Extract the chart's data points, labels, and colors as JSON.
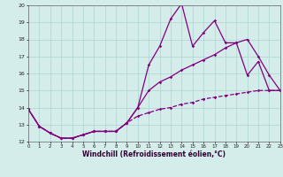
{
  "xlabel": "Windchill (Refroidissement éolien,°C)",
  "x": [
    0,
    1,
    2,
    3,
    4,
    5,
    6,
    7,
    8,
    9,
    10,
    11,
    12,
    13,
    14,
    15,
    16,
    17,
    18,
    19,
    20,
    21,
    22,
    23
  ],
  "line1": [
    13.9,
    12.9,
    12.5,
    12.2,
    12.2,
    12.4,
    12.6,
    12.6,
    12.6,
    13.1,
    14.0,
    16.5,
    17.6,
    19.2,
    20.1,
    17.6,
    18.4,
    19.1,
    17.8,
    17.8,
    15.9,
    16.7,
    15.0,
    15.0
  ],
  "line2": [
    13.9,
    12.9,
    12.5,
    12.2,
    12.2,
    12.4,
    12.6,
    12.6,
    12.6,
    13.1,
    14.0,
    15.0,
    15.5,
    15.8,
    16.2,
    16.5,
    16.8,
    17.1,
    17.5,
    17.8,
    18.0,
    17.0,
    15.9,
    15.0
  ],
  "line3": [
    13.9,
    12.9,
    12.5,
    12.2,
    12.2,
    12.4,
    12.6,
    12.6,
    12.6,
    13.1,
    13.5,
    13.7,
    13.9,
    14.0,
    14.2,
    14.3,
    14.5,
    14.6,
    14.7,
    14.8,
    14.9,
    15.0,
    15.0,
    15.0
  ],
  "line_color": "#800080",
  "bg_color": "#d4ecea",
  "grid_color": "#aed4d0",
  "ylim": [
    12,
    20
  ],
  "yticks": [
    12,
    13,
    14,
    15,
    16,
    17,
    18,
    19,
    20
  ],
  "xticks": [
    0,
    1,
    2,
    3,
    4,
    5,
    6,
    7,
    8,
    9,
    10,
    11,
    12,
    13,
    14,
    15,
    16,
    17,
    18,
    19,
    20,
    21,
    22,
    23
  ]
}
